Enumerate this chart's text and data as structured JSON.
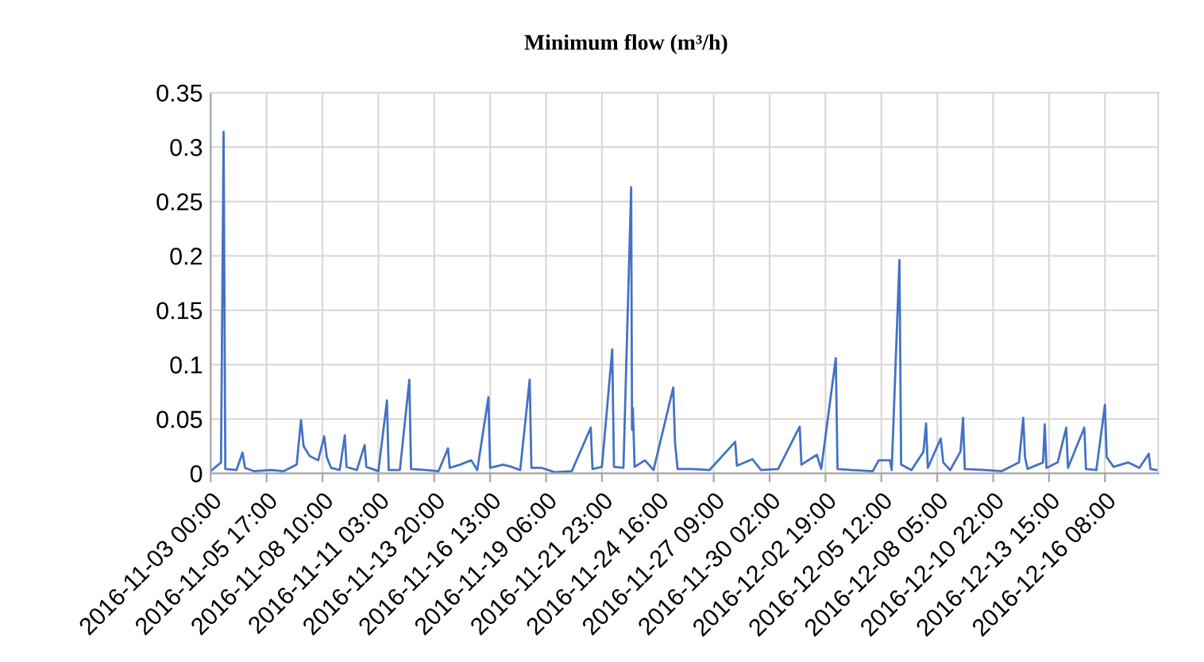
{
  "chart_data": {
    "type": "line",
    "title": "Minimum flow (m³/h)",
    "x": [
      "2016-11-03T00:00",
      "2016-11-03T12:00",
      "2016-11-03T15:00",
      "2016-11-03T17:00",
      "2016-11-04T06:00",
      "2016-11-04T13:00",
      "2016-11-04T16:00",
      "2016-11-05T02:00",
      "2016-11-05T22:00",
      "2016-11-06T13:00",
      "2016-11-07T04:00",
      "2016-11-07T09:00",
      "2016-11-07T12:00",
      "2016-11-07T19:00",
      "2016-11-08T05:00",
      "2016-11-08T12:00",
      "2016-11-08T15:00",
      "2016-11-08T20:00",
      "2016-11-09T06:00",
      "2016-11-09T12:00",
      "2016-11-09T14:00",
      "2016-11-10T02:00",
      "2016-11-10T11:00",
      "2016-11-10T13:00",
      "2016-11-11T03:00",
      "2016-11-11T13:00",
      "2016-11-11T15:00",
      "2016-11-12T04:00",
      "2016-11-12T15:00",
      "2016-11-12T17:00",
      "2016-11-13T10:00",
      "2016-11-14T01:00",
      "2016-11-14T12:00",
      "2016-11-14T14:00",
      "2016-11-15T02:00",
      "2016-11-15T15:00",
      "2016-11-15T22:00",
      "2016-11-16T11:00",
      "2016-11-16T13:00",
      "2016-11-17T04:00",
      "2016-11-17T14:00",
      "2016-11-18T00:00",
      "2016-11-18T11:00",
      "2016-11-18T13:00",
      "2016-11-19T01:00",
      "2016-11-19T16:00",
      "2016-11-20T12:00",
      "2016-11-21T10:00",
      "2016-11-21T12:00",
      "2016-11-21T23:00",
      "2016-11-22T11:00",
      "2016-11-22T13:00",
      "2016-11-23T00:00",
      "2016-11-23T09:00",
      "2016-11-23T10:00",
      "2016-11-23T11:00",
      "2016-11-23T13:00",
      "2016-11-24T01:00",
      "2016-11-24T11:00",
      "2016-11-25T10:00",
      "2016-11-25T12:00",
      "2016-11-25T15:00",
      "2016-11-26T08:00",
      "2016-11-27T04:00",
      "2016-11-28T10:00",
      "2016-11-28T12:00",
      "2016-11-29T06:00",
      "2016-11-29T16:00",
      "2016-11-30T12:00",
      "2016-12-01T13:00",
      "2016-12-01T15:00",
      "2016-12-02T09:00",
      "2016-12-02T14:00",
      "2016-12-03T07:00",
      "2016-12-03T09:00",
      "2016-12-04T01:00",
      "2016-12-05T02:00",
      "2016-12-05T09:00",
      "2016-12-05T22:00",
      "2016-12-06T00:00",
      "2016-12-06T09:00",
      "2016-12-06T11:00",
      "2016-12-06T23:00",
      "2016-12-07T13:00",
      "2016-12-07T16:00",
      "2016-12-07T18:00",
      "2016-12-08T09:00",
      "2016-12-08T12:00",
      "2016-12-08T20:00",
      "2016-12-09T08:00",
      "2016-12-09T11:00",
      "2016-12-09T13:00",
      "2016-12-10T12:00",
      "2016-12-11T08:00",
      "2016-12-12T04:00",
      "2016-12-12T09:00",
      "2016-12-12T11:00",
      "2016-12-12T14:00",
      "2016-12-13T08:00",
      "2016-12-13T10:00",
      "2016-12-13T12:00",
      "2016-12-14T01:00",
      "2016-12-14T11:00",
      "2016-12-14T13:00",
      "2016-12-15T08:00",
      "2016-12-15T10:00",
      "2016-12-15T22:00",
      "2016-12-16T08:00",
      "2016-12-16T10:00",
      "2016-12-16T18:00",
      "2016-12-17T11:00",
      "2016-12-18T00:00",
      "2016-12-18T11:00",
      "2016-12-18T13:00",
      "2016-12-18T20:00"
    ],
    "series": [
      {
        "color": "#4472c4",
        "values": [
          0.002,
          0.01,
          0.314,
          0.004,
          0.003,
          0.019,
          0.005,
          0.002,
          0.003,
          0.002,
          0.008,
          0.049,
          0.025,
          0.016,
          0.012,
          0.034,
          0.015,
          0.005,
          0.003,
          0.035,
          0.006,
          0.003,
          0.026,
          0.006,
          0.002,
          0.067,
          0.003,
          0.003,
          0.086,
          0.004,
          0.003,
          0.002,
          0.023,
          0.005,
          0.008,
          0.012,
          0.003,
          0.07,
          0.005,
          0.008,
          0.006,
          0.003,
          0.086,
          0.005,
          0.005,
          0.001,
          0.002,
          0.042,
          0.004,
          0.006,
          0.114,
          0.006,
          0.005,
          0.263,
          0.04,
          0.06,
          0.006,
          0.012,
          0.003,
          0.079,
          0.028,
          0.004,
          0.004,
          0.003,
          0.029,
          0.007,
          0.013,
          0.003,
          0.004,
          0.043,
          0.008,
          0.017,
          0.004,
          0.106,
          0.004,
          0.003,
          0.002,
          0.012,
          0.012,
          0.003,
          0.196,
          0.008,
          0.003,
          0.02,
          0.046,
          0.005,
          0.032,
          0.01,
          0.003,
          0.02,
          0.051,
          0.004,
          0.003,
          0.002,
          0.01,
          0.051,
          0.015,
          0.004,
          0.01,
          0.045,
          0.005,
          0.01,
          0.042,
          0.005,
          0.042,
          0.004,
          0.003,
          0.063,
          0.015,
          0.006,
          0.01,
          0.005,
          0.018,
          0.004,
          0.003
        ]
      }
    ],
    "xlim": [
      "2016-11-03T00:00",
      "2016-12-18T22:00"
    ],
    "xticks": [
      {
        "value": "2016-11-03T00:00",
        "label": "2016-11-03 00:00"
      },
      {
        "value": "2016-11-05T17:00",
        "label": "2016-11-05 17:00"
      },
      {
        "value": "2016-11-08T10:00",
        "label": "2016-11-08 10:00"
      },
      {
        "value": "2016-11-11T03:00",
        "label": "2016-11-11 03:00"
      },
      {
        "value": "2016-11-13T20:00",
        "label": "2016-11-13 20:00"
      },
      {
        "value": "2016-11-16T13:00",
        "label": "2016-11-16 13:00"
      },
      {
        "value": "2016-11-19T06:00",
        "label": "2016-11-19 06:00"
      },
      {
        "value": "2016-11-21T23:00",
        "label": "2016-11-21 23:00"
      },
      {
        "value": "2016-11-24T16:00",
        "label": "2016-11-24 16:00"
      },
      {
        "value": "2016-11-27T09:00",
        "label": "2016-11-27 09:00"
      },
      {
        "value": "2016-11-30T02:00",
        "label": "2016-11-30 02:00"
      },
      {
        "value": "2016-12-02T19:00",
        "label": "2016-12-02 19:00"
      },
      {
        "value": "2016-12-05T12:00",
        "label": "2016-12-05 12:00"
      },
      {
        "value": "2016-12-08T05:00",
        "label": "2016-12-08 05:00"
      },
      {
        "value": "2016-12-10T22:00",
        "label": "2016-12-10 22:00"
      },
      {
        "value": "2016-12-13T15:00",
        "label": "2016-12-13 15:00"
      },
      {
        "value": "2016-12-16T08:00",
        "label": "2016-12-16 08:00"
      }
    ],
    "ylim": [
      0,
      0.35
    ],
    "yticks": [
      0,
      0.05,
      0.1,
      0.15,
      0.2,
      0.25,
      0.3,
      0.35
    ],
    "grid": true,
    "line_style": "solid"
  }
}
